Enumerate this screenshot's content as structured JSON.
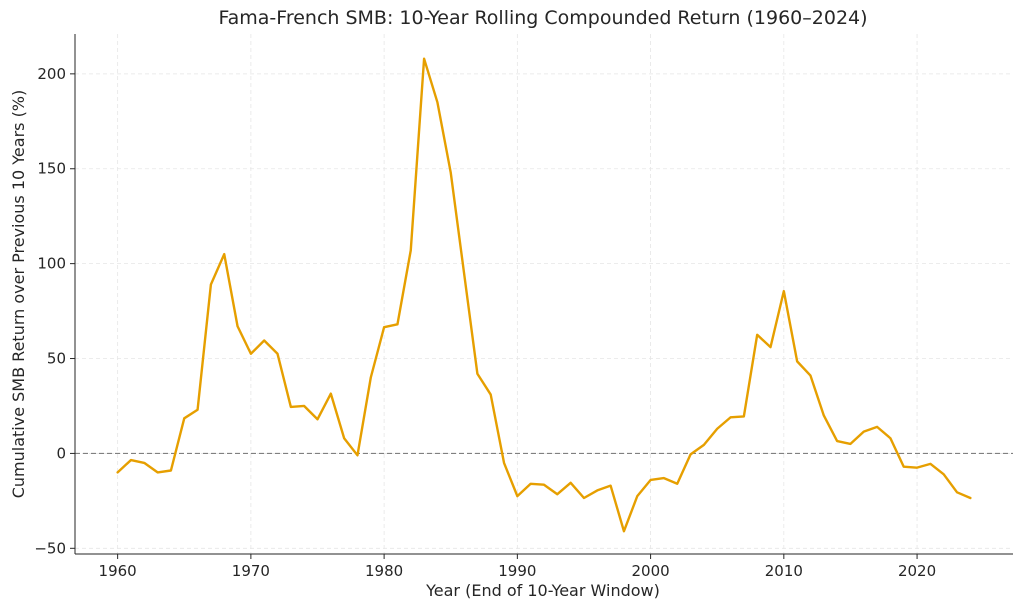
{
  "chart_data": {
    "type": "line",
    "title": "Fama-French SMB: 10-Year Rolling Compounded Return (1960–2024)",
    "xlabel": "Year (End of 10-Year Window)",
    "ylabel": "Cumulative SMB Return over Previous 10 Years (%)",
    "xlim": [
      1956.8,
      2027.2
    ],
    "ylim": [
      -53,
      221
    ],
    "xticks": [
      1960,
      1970,
      1980,
      1990,
      2000,
      2010,
      2020
    ],
    "yticks": [
      -50,
      0,
      50,
      100,
      150,
      200
    ],
    "ytick_labels": [
      "−50",
      "0",
      "50",
      "100",
      "150",
      "200"
    ],
    "grid": true,
    "reference_line": {
      "y": 0,
      "style": "dashed",
      "color": "#808080"
    },
    "line_color": "#E69F00",
    "series": [
      {
        "x": [
          1960,
          1961,
          1962,
          1963,
          1964,
          1965,
          1966,
          1967,
          1968,
          1969,
          1970,
          1971,
          1972,
          1973,
          1974,
          1975,
          1976,
          1977,
          1978,
          1979,
          1980,
          1981,
          1982,
          1983,
          1984,
          1985,
          1986,
          1987,
          1988,
          1989,
          1990,
          1991,
          1992,
          1993,
          1994,
          1995,
          1996,
          1997,
          1998,
          1999,
          2000,
          2001,
          2002,
          2003,
          2004,
          2005,
          2006,
          2007,
          2008,
          2009,
          2010,
          2011,
          2012,
          2013,
          2014,
          2015,
          2016,
          2017,
          2018,
          2019,
          2020,
          2021,
          2022,
          2023,
          2024
        ],
        "y": [
          -10,
          -3.5,
          -5,
          -10,
          -9,
          18.5,
          23,
          89,
          105,
          67,
          52.5,
          59.5,
          52.5,
          24.5,
          25,
          18,
          31.5,
          8,
          -1,
          40,
          66.5,
          68,
          107,
          208,
          185,
          148,
          95,
          42,
          31,
          -5,
          -22.5,
          -16,
          -16.5,
          -21.5,
          -15.5,
          -23.5,
          -19.5,
          -17,
          -41,
          -22.5,
          -14,
          -13,
          -16,
          -0.5,
          4.5,
          13,
          19,
          19.5,
          62.5,
          56,
          85.5,
          48.5,
          41,
          20,
          6.5,
          5,
          11.5,
          14,
          8,
          -7,
          -7.5,
          -5.5,
          -11,
          -20.5,
          -23.5
        ]
      }
    ]
  }
}
